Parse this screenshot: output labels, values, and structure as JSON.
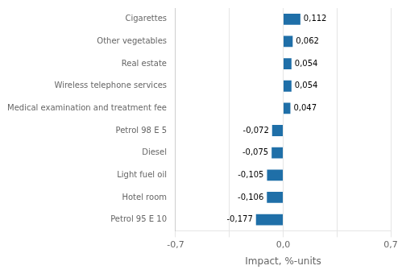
{
  "chart_data": {
    "type": "bar",
    "orientation": "horizontal",
    "categories": [
      "Petrol 95 E 10",
      "Hotel room",
      "Light fuel oil",
      "Diesel",
      "Petrol 98 E 5",
      "Medical examination and treatment fee",
      "Wireless telephone services",
      "Real estate",
      "Other vegetables",
      "Cigarettes"
    ],
    "values": [
      -0.177,
      -0.106,
      -0.105,
      -0.075,
      -0.072,
      0.047,
      0.054,
      0.054,
      0.062,
      0.112
    ],
    "value_labels": [
      "-0,177",
      "-0,106",
      "-0,105",
      "-0,075",
      "-0,072",
      "0,047",
      "0,054",
      "0,054",
      "0,062",
      "0,112"
    ],
    "data_labels": true,
    "color": "#1f6fa8",
    "xlabel": "Impact, %-units",
    "xlim": [
      -0.7,
      0.7
    ],
    "xticks": [
      {
        "value": -0.7,
        "label": "-0,7"
      },
      {
        "value": -0.35,
        "label": ""
      },
      {
        "value": 0.0,
        "label": "0,0"
      },
      {
        "value": 0.35,
        "label": ""
      },
      {
        "value": 0.7,
        "label": "0,7"
      }
    ],
    "grid": true
  }
}
